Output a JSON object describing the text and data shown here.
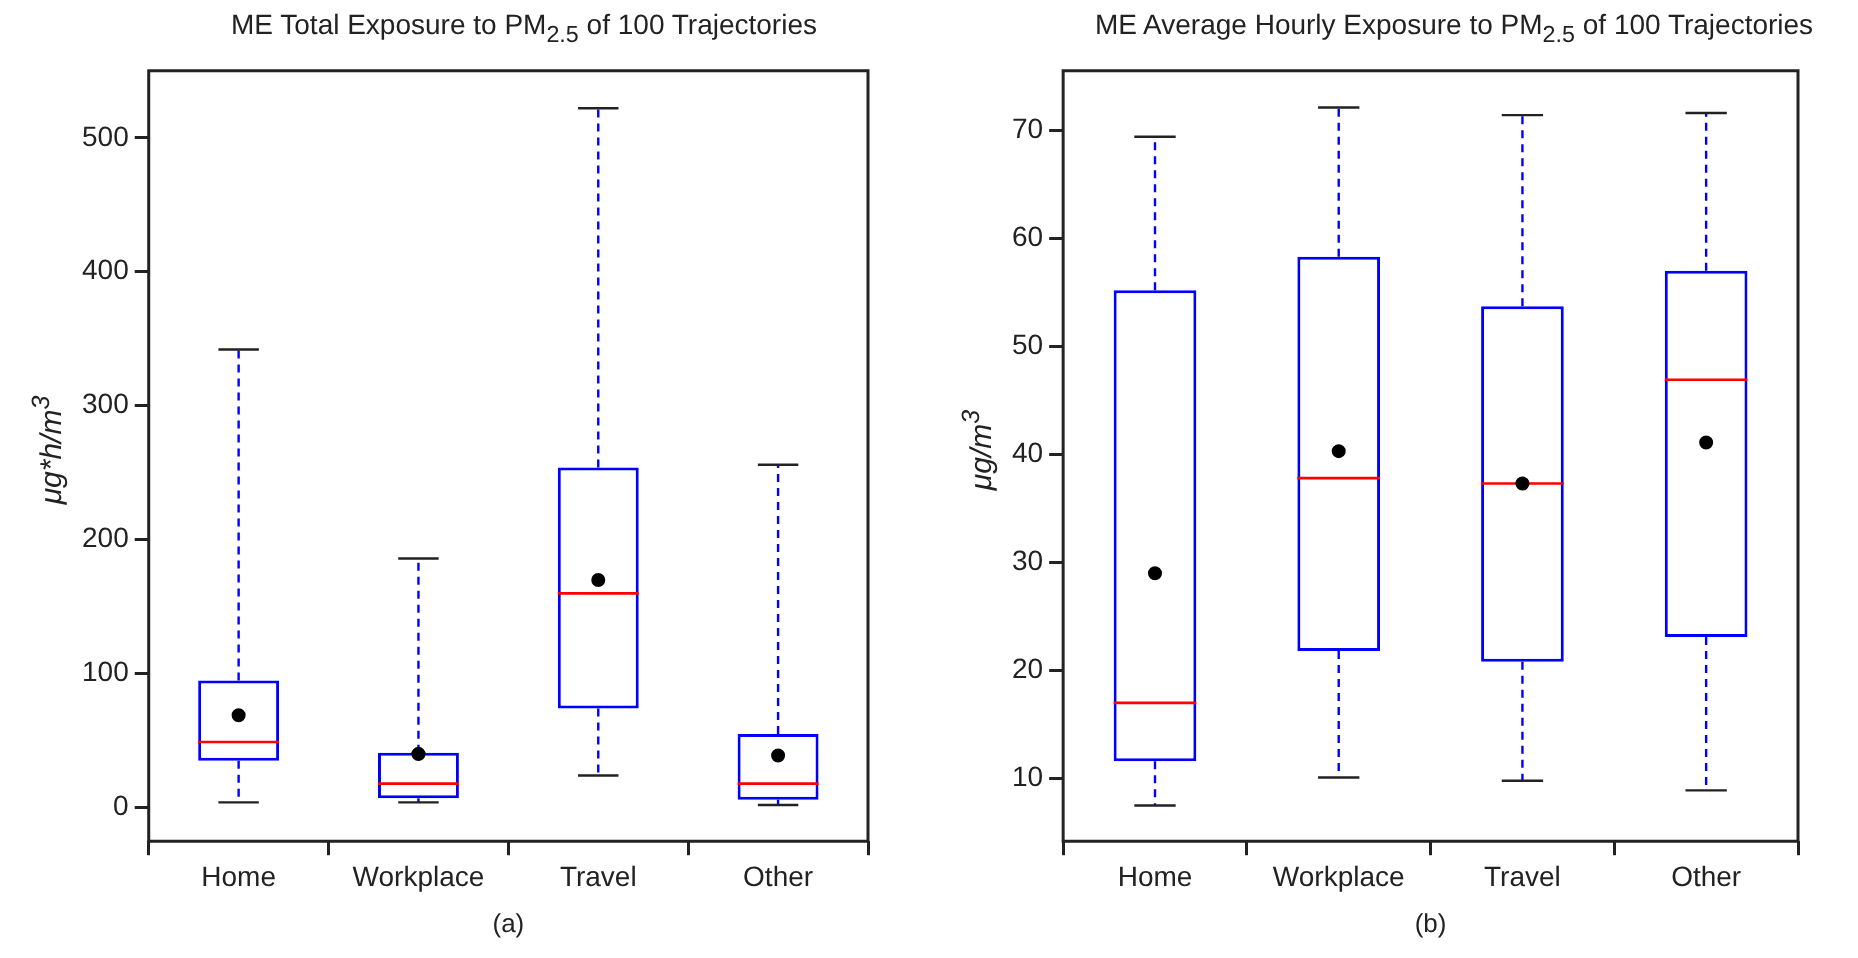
{
  "chart_data": [
    {
      "type": "box",
      "title": "ME Total Exposure to PM$_{2.5}$ of 100 Trajectories",
      "xlabel": "(a)",
      "ylabel": "μg*h/m$^{3}$",
      "categories": [
        "Home",
        "Workplace",
        "Travel",
        "Other"
      ],
      "boxes": [
        {
          "low": 4,
          "q1": 35,
          "median": 49,
          "q3": 95,
          "high": 342,
          "mean": 69
        },
        {
          "low": 4,
          "q1": 7,
          "median": 18,
          "q3": 41,
          "high": 186,
          "mean": 40
        },
        {
          "low": 24,
          "q1": 74,
          "median": 160,
          "q3": 254,
          "high": 522,
          "mean": 170
        },
        {
          "low": 2,
          "q1": 6,
          "median": 18,
          "q3": 55,
          "high": 256,
          "mean": 39
        }
      ],
      "ylim": [
        -25,
        550
      ],
      "yticks": [
        0,
        100,
        200,
        300,
        400,
        500
      ],
      "grid": false,
      "legend": false
    },
    {
      "type": "box",
      "title": "ME Average Hourly Exposure to PM$_{2.5}$ of 100 Trajectories",
      "xlabel": "(b)",
      "ylabel": "μg/m$^{3}$",
      "categories": [
        "Home",
        "Workplace",
        "Travel",
        "Other"
      ],
      "boxes": [
        {
          "low": 7.5,
          "q1": 11.6,
          "median": 17.0,
          "q3": 55.2,
          "high": 69.4,
          "mean": 29.0
        },
        {
          "low": 10.1,
          "q1": 21.8,
          "median": 37.8,
          "q3": 58.3,
          "high": 72.1,
          "mean": 40.3
        },
        {
          "low": 9.8,
          "q1": 20.8,
          "median": 37.3,
          "q3": 53.7,
          "high": 71.4,
          "mean": 37.3
        },
        {
          "low": 8.9,
          "q1": 23.1,
          "median": 46.9,
          "q3": 57.0,
          "high": 71.6,
          "mean": 41.1
        }
      ],
      "ylim": [
        4.2,
        75.5
      ],
      "yticks": [
        10,
        20,
        30,
        40,
        50,
        60,
        70
      ],
      "grid": false,
      "legend": false
    }
  ]
}
